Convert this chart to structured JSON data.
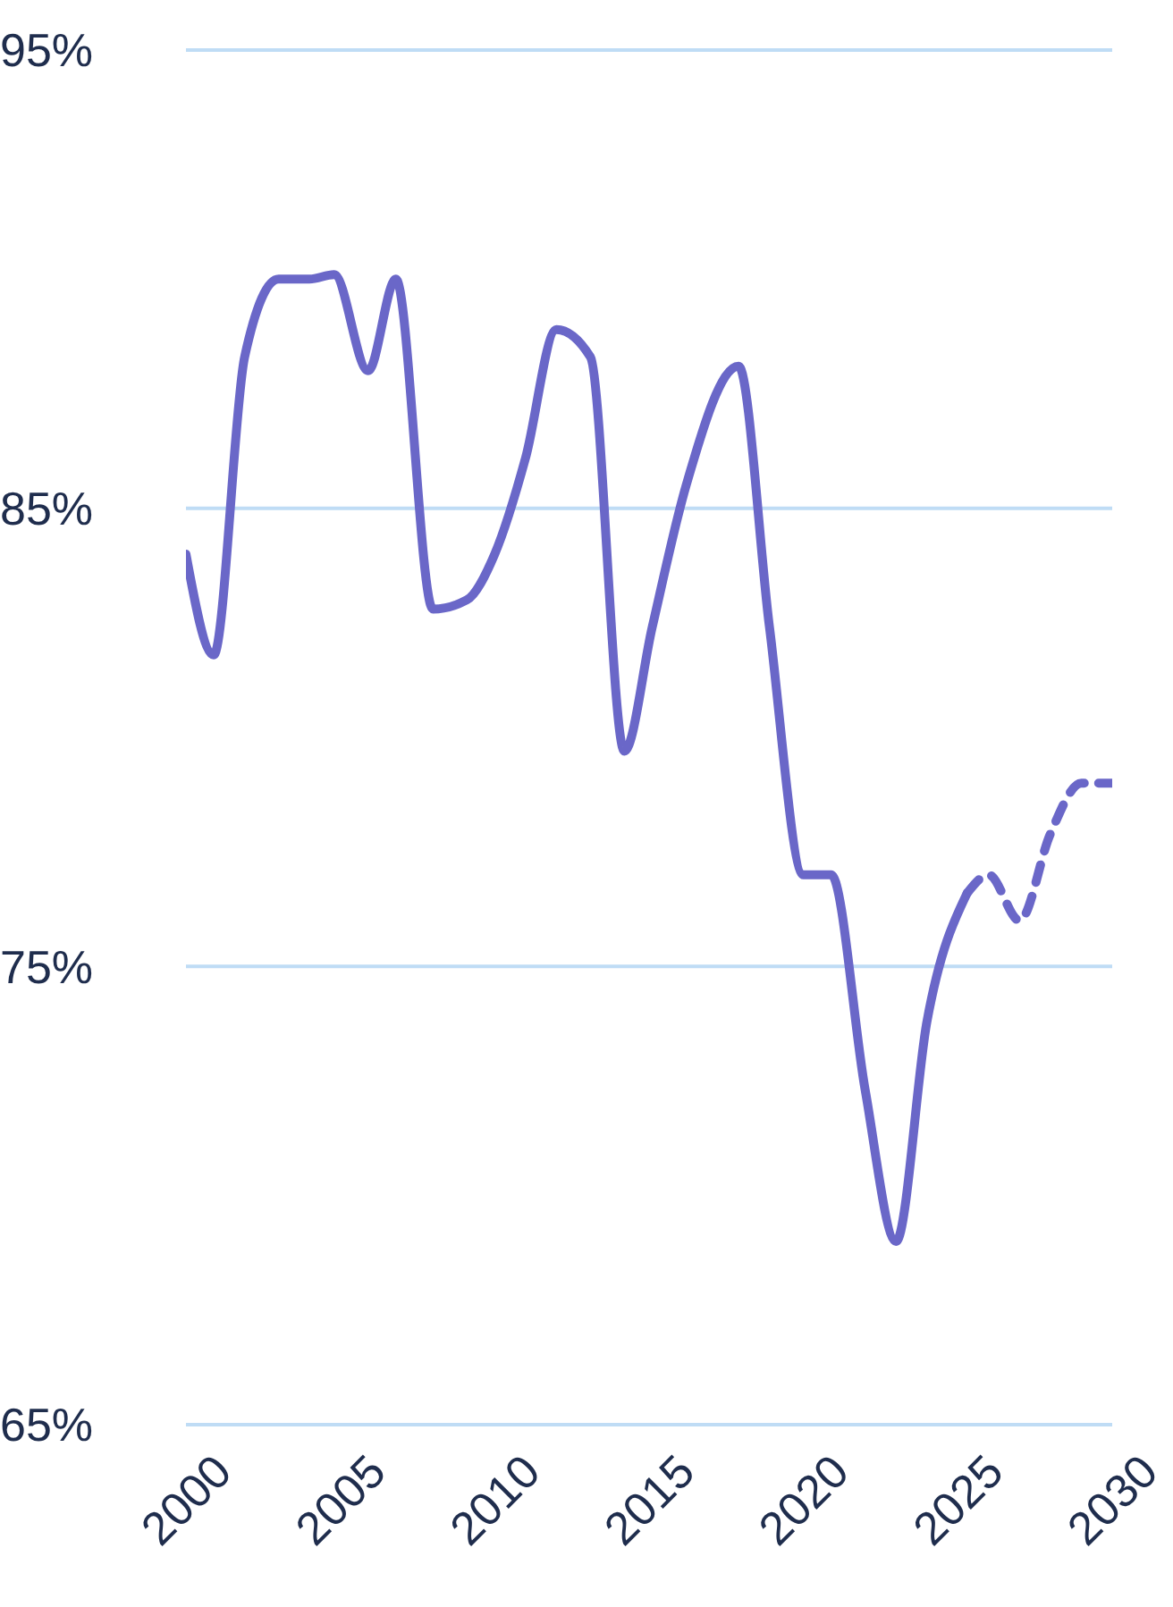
{
  "chart_data": {
    "type": "line",
    "xlim": [
      2000,
      2030
    ],
    "xticks": [
      2000,
      2005,
      2010,
      2015,
      2020,
      2025,
      2030
    ],
    "ylim": [
      65,
      95
    ],
    "yticks": [
      {
        "value": 65,
        "label": "65%"
      },
      {
        "value": 75,
        "label": "75%"
      },
      {
        "value": 85,
        "label": "85%"
      },
      {
        "value": 95,
        "label": "95%"
      }
    ],
    "grid": "y",
    "marker": "none",
    "series": [
      {
        "color": "#6a67c8",
        "line_style": "solid",
        "x": [
          2000,
          2000.9,
          2001.9,
          2003,
          2004,
          2004.8,
          2005.9,
          2006.8,
          2008,
          2009.1,
          2010,
          2011,
          2012,
          2013.1,
          2014.2,
          2015.1,
          2016.2,
          2017.9,
          2018.9,
          2020,
          2020.9,
          2022,
          2023,
          2024,
          2025.3
        ],
        "values": [
          84.0,
          81.8,
          88.3,
          90.0,
          90.0,
          90.1,
          88.0,
          90.0,
          82.8,
          83.0,
          84.0,
          86.1,
          88.9,
          88.3,
          79.7,
          82.4,
          85.5,
          88.1,
          82.4,
          77.0,
          77.0,
          72.3,
          69.0,
          73.8,
          76.6
        ]
      },
      {
        "color": "#6a67c8",
        "line_style": "dashed",
        "x": [
          2025.3,
          2026,
          2027,
          2028,
          2029,
          2030
        ],
        "values": [
          76.6,
          77.0,
          76.0,
          77.9,
          79.0,
          79.0
        ]
      }
    ]
  }
}
